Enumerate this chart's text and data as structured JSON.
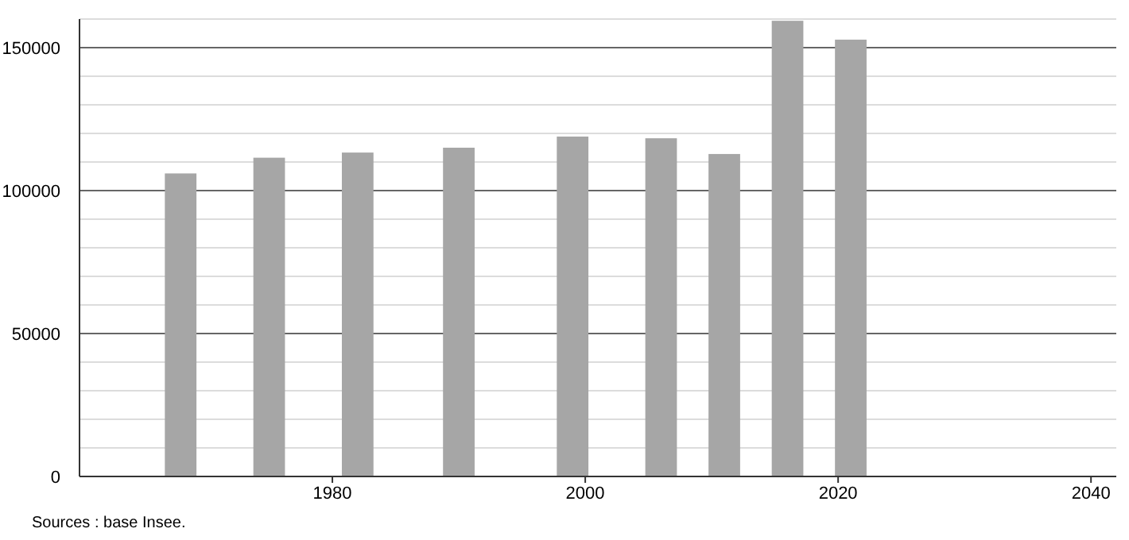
{
  "chart_data": {
    "type": "bar",
    "x": [
      1968,
      1975,
      1982,
      1990,
      1999,
      2006,
      2011,
      2016,
      2021
    ],
    "values": [
      106000,
      111500,
      113300,
      115000,
      118900,
      118300,
      112800,
      159400,
      152800
    ],
    "color": "#a6a6a6",
    "xlim": [
      1960,
      2042
    ],
    "xticks": [
      1980,
      2000,
      2020,
      2040
    ],
    "ylim": [
      0,
      160000
    ],
    "yticks": [
      0,
      {
        "value": 10000,
        "label": null
      },
      {
        "value": 20000,
        "label": null
      },
      {
        "value": 30000,
        "label": null
      },
      {
        "value": 40000,
        "label": null
      },
      50000,
      {
        "value": 60000,
        "label": null
      },
      {
        "value": 70000,
        "label": null
      },
      {
        "value": 80000,
        "label": null
      },
      {
        "value": 90000,
        "label": null
      },
      100000,
      {
        "value": 110000,
        "label": null
      },
      {
        "value": 120000,
        "label": null
      },
      {
        "value": 130000,
        "label": null
      },
      {
        "value": 140000,
        "label": null
      },
      150000,
      {
        "value": 160000,
        "label": null
      }
    ],
    "grid": true,
    "annotations": [
      "Sources : base Insee."
    ]
  }
}
